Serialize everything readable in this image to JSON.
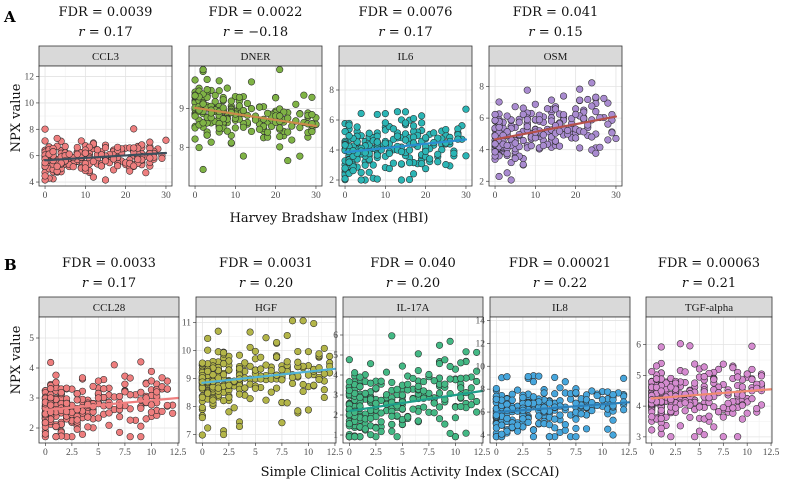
{
  "figure": {
    "row_a": {
      "letter": "A",
      "ylabel": "NPX value",
      "xlabel": "Harvey Bradshaw Index (HBI)"
    },
    "row_b": {
      "letter": "B",
      "ylabel": "NPX value",
      "xlabel": "Simple Clinical Colitis Activity Index (SCCAI)"
    }
  },
  "chart_data": [
    {
      "type": "scatter",
      "row": "A",
      "title": "CCL3",
      "fdr": "FDR = 0.0039",
      "r": "= 0.17",
      "color": "#ee7e7e",
      "line_color": "#3d4f5c",
      "xlabel": "Harvey Bradshaw Index (HBI)",
      "ylabel": "NPX value",
      "xlim": [
        -1.5,
        31.5
      ],
      "ylim": [
        3.7,
        12.8
      ],
      "xticks": [
        0,
        10,
        20,
        30
      ],
      "yticks": [
        4,
        6,
        8,
        10,
        12
      ],
      "trend": [
        [
          0,
          5.65
        ],
        [
          30,
          6.2
        ]
      ],
      "n": 230,
      "x_range": [
        0,
        30
      ],
      "y_center": 5.6,
      "y_spread": 0.55
    },
    {
      "type": "scatter",
      "row": "A",
      "title": "DNER",
      "fdr": "FDR = 0.0022",
      "r": "= −0.18",
      "color": "#7fb345",
      "line_color": "#c98a4a",
      "xlabel": "Harvey Bradshaw Index (HBI)",
      "ylabel": "NPX value",
      "xlim": [
        -1.5,
        31.5
      ],
      "ylim": [
        7.0,
        10.1
      ],
      "xticks": [
        0,
        10,
        20,
        30
      ],
      "yticks": [
        8,
        9
      ],
      "trend": [
        [
          0,
          9.02
        ],
        [
          30,
          8.55
        ]
      ],
      "n": 230,
      "x_range": [
        0,
        30
      ],
      "y_center": 8.95,
      "y_spread": 0.35
    },
    {
      "type": "scatter",
      "row": "A",
      "title": "IL6",
      "fdr": "FDR = 0.0076",
      "r": "= 0.17",
      "color": "#2bb5b5",
      "line_color": "#2a8fcf",
      "xlabel": "Harvey Bradshaw Index (HBI)",
      "ylabel": "NPX value",
      "xlim": [
        -1.5,
        31.5
      ],
      "ylim": [
        1.6,
        9.6
      ],
      "xticks": [
        0,
        10,
        20,
        30
      ],
      "yticks": [
        2,
        4,
        6,
        8
      ],
      "trend": [
        [
          0,
          3.85
        ],
        [
          30,
          4.7
        ]
      ],
      "n": 230,
      "x_range": [
        0,
        30
      ],
      "y_center": 3.8,
      "y_spread": 0.9
    },
    {
      "type": "scatter",
      "row": "A",
      "title": "OSM",
      "fdr": "FDR = 0.041",
      "r": "= 0.15",
      "color": "#a98bd0",
      "line_color": "#b5504a",
      "xlabel": "Harvey Bradshaw Index (HBI)",
      "ylabel": "NPX value",
      "xlim": [
        -1.5,
        31.5
      ],
      "ylim": [
        1.7,
        9.3
      ],
      "xticks": [
        0,
        10,
        20,
        30
      ],
      "yticks": [
        2,
        4,
        6,
        8
      ],
      "trend": [
        [
          0,
          4.65
        ],
        [
          30,
          6.1
        ]
      ],
      "n": 230,
      "x_range": [
        0,
        30
      ],
      "y_center": 4.7,
      "y_spread": 0.85
    },
    {
      "type": "scatter",
      "row": "B",
      "title": "CCL28",
      "fdr": "FDR = 0.0033",
      "r": "= 0.17",
      "color": "#ee7e7e",
      "line_color": "#ee7e7e",
      "xlabel": "Simple Clinical Colitis Activity Index (SCCAI)",
      "ylabel": "NPX value",
      "xlim": [
        -0.6,
        12.6
      ],
      "ylim": [
        1.5,
        5.7
      ],
      "xticks": [
        0,
        2.5,
        5,
        7.5,
        10,
        12.5
      ],
      "yticks": [
        2,
        3,
        4,
        5
      ],
      "trend": [
        [
          0,
          2.6
        ],
        [
          12.5,
          3.0
        ]
      ],
      "n": 260,
      "x_range": [
        0,
        12
      ],
      "y_center": 2.65,
      "y_spread": 0.45
    },
    {
      "type": "scatter",
      "row": "B",
      "title": "HGF",
      "fdr": "FDR = 0.0031",
      "r": "= 0.20",
      "color": "#b3b548",
      "line_color": "#4fb3d6",
      "xlabel": "Simple Clinical Colitis Activity Index (SCCAI)",
      "ylabel": "NPX value",
      "xlim": [
        -0.6,
        12.6
      ],
      "ylim": [
        6.7,
        11.2
      ],
      "xticks": [
        0,
        2.5,
        5,
        7.5,
        10,
        12.5
      ],
      "yticks": [
        7,
        8,
        9,
        10,
        11
      ],
      "trend": [
        [
          0,
          8.85
        ],
        [
          12.5,
          9.35
        ]
      ],
      "n": 260,
      "x_range": [
        0,
        12
      ],
      "y_center": 8.9,
      "y_spread": 0.55
    },
    {
      "type": "scatter",
      "row": "B",
      "title": "IL-17A",
      "fdr": "FDR = 0.040",
      "r": "= 0.20",
      "color": "#43b884",
      "line_color": "#1e9e8a",
      "xlabel": "Simple Clinical Colitis Activity Index (SCCAI)",
      "ylabel": "NPX value",
      "xlim": [
        -0.6,
        12.6
      ],
      "ylim": [
        0.6,
        6.9
      ],
      "xticks": [
        0,
        2.5,
        5,
        7.5,
        10,
        12.5
      ],
      "yticks": [
        1,
        2,
        3,
        4,
        5,
        6
      ],
      "trend": [
        [
          0,
          2.2
        ],
        [
          12.5,
          3.2
        ]
      ],
      "n": 260,
      "x_range": [
        0,
        12
      ],
      "y_center": 2.4,
      "y_spread": 0.9
    },
    {
      "type": "scatter",
      "row": "B",
      "title": "IL8",
      "fdr": "FDR = 0.00021",
      "r": "= 0.22",
      "color": "#46a6dd",
      "line_color": "#2c7fb8",
      "xlabel": "Simple Clinical Colitis Activity Index (SCCAI)",
      "ylabel": "NPX value",
      "xlim": [
        -0.6,
        12.6
      ],
      "ylim": [
        3.3,
        14.3
      ],
      "xticks": [
        0,
        2.5,
        5,
        7.5,
        10,
        12.5
      ],
      "yticks": [
        4,
        6,
        8,
        10,
        12,
        14
      ],
      "trend": [
        [
          0,
          6.0
        ],
        [
          12.5,
          6.85
        ]
      ],
      "n": 260,
      "x_range": [
        0,
        12
      ],
      "y_center": 6.1,
      "y_spread": 1.1
    },
    {
      "type": "scatter",
      "row": "B",
      "title": "TGF-alpha",
      "fdr": "FDR = 0.00063",
      "r": "= 0.21",
      "color": "#d58bd0",
      "line_color": "#f08a70",
      "xlabel": "Simple Clinical Colitis Activity Index (SCCAI)",
      "ylabel": "NPX value",
      "xlim": [
        -0.6,
        12.6
      ],
      "ylim": [
        2.8,
        6.9
      ],
      "xticks": [
        0,
        2.5,
        5,
        7.5,
        10,
        12.5
      ],
      "yticks": [
        3,
        4,
        5,
        6
      ],
      "trend": [
        [
          0,
          4.25
        ],
        [
          12.5,
          4.55
        ]
      ],
      "n": 260,
      "x_range": [
        0,
        12
      ],
      "y_center": 4.3,
      "y_spread": 0.45
    }
  ]
}
